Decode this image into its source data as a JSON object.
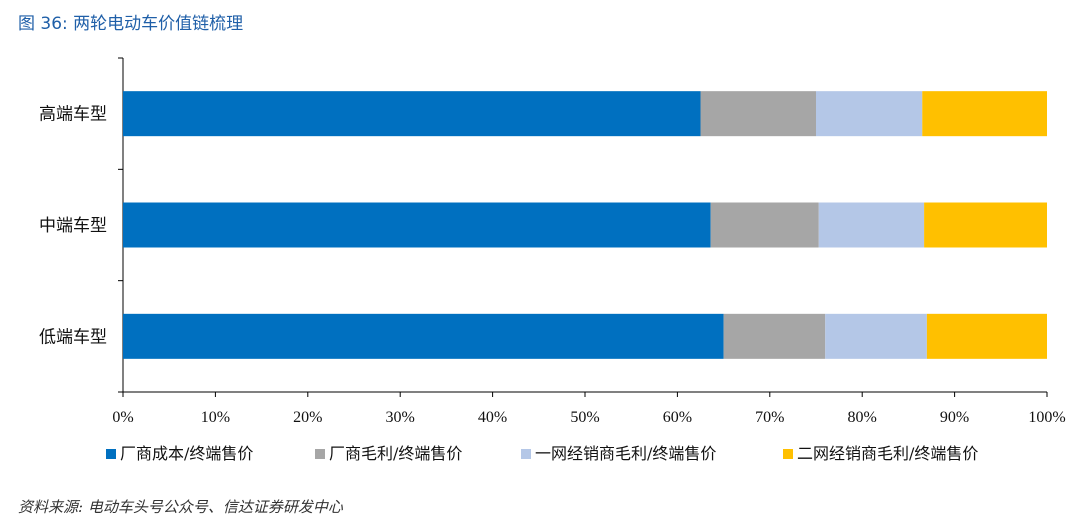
{
  "figure": {
    "title": "图 36: 两轮电动车价值链梳理",
    "source": "资料来源: 电动车头号公众号、信达证券研发中心"
  },
  "chart_data": {
    "type": "bar",
    "orientation": "horizontal",
    "stacked": true,
    "categories": [
      "高端车型",
      "中端车型",
      "低端车型"
    ],
    "series": [
      {
        "name": "厂商成本/终端售价",
        "color": "#0070C0",
        "values": [
          62.5,
          63.6,
          65.0
        ]
      },
      {
        "name": "厂商毛利/终端售价",
        "color": "#A6A6A6",
        "values": [
          12.5,
          11.7,
          11.0
        ]
      },
      {
        "name": "一网经销商毛利/终端售价",
        "color": "#B4C7E7",
        "values": [
          11.5,
          11.4,
          11.0
        ]
      },
      {
        "name": "二网经销商毛利/终端售价",
        "color": "#FFC000",
        "values": [
          13.5,
          13.3,
          13.0
        ]
      }
    ],
    "xlim": [
      0,
      100
    ],
    "xticks": [
      "0%",
      "10%",
      "20%",
      "30%",
      "40%",
      "50%",
      "60%",
      "70%",
      "80%",
      "90%",
      "100%"
    ],
    "grid": false,
    "legend_position": "bottom"
  }
}
